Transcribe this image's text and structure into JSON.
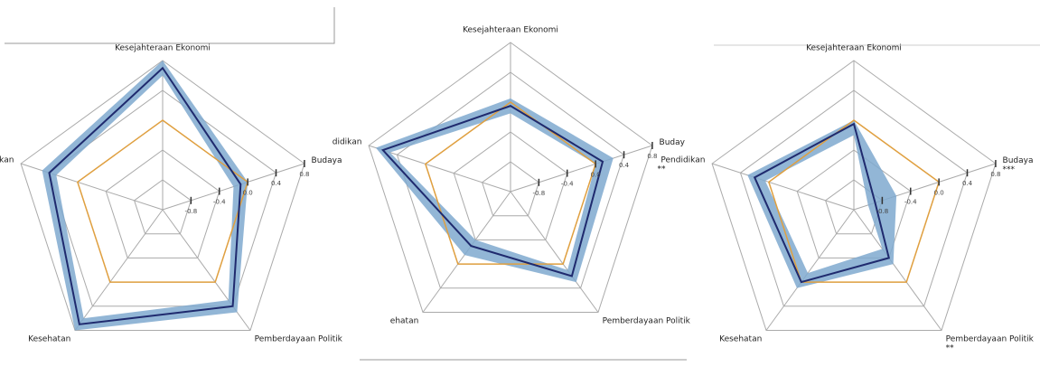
{
  "chart_data": [
    {
      "type": "radar",
      "axes": [
        "Kesejahteraan Ekonomi",
        "Budaya",
        "Pemberdayaan Politik",
        "Kesehatan",
        "Pendidikan"
      ],
      "rlim": [
        -1.2,
        0.8
      ],
      "rticks": [
        -0.8,
        -0.4,
        {
          "value": 0,
          "label": "0.0"
        },
        0.4,
        0.8
      ],
      "values": [
        0.7,
        -0.1,
        0.4,
        0.7,
        0.4
      ],
      "ci_low": [
        0.6,
        -0.2,
        0.3,
        0.6,
        0.3
      ],
      "ci_high": [
        0.8,
        0.0,
        0.5,
        0.8,
        0.5
      ],
      "reference": [
        0,
        0,
        0,
        0,
        0
      ],
      "color": "#1f2a6e",
      "band_color": "#7fa9cf",
      "reference_color": "#e0a040"
    },
    {
      "type": "radar",
      "axes": [
        "Kesejahteraan Ekonomi",
        "Buday",
        "Pemberdayaan Politik",
        "ehatan",
        "didikan"
      ],
      "rlim": [
        -1.2,
        0.8
      ],
      "rticks": [
        -0.8,
        -0.4,
        {
          "value": 0,
          "label": "0.0"
        },
        0.4,
        0.8
      ],
      "values": [
        -0.05,
        0.1,
        0.2,
        -0.3,
        0.6
      ],
      "ci_low": [
        -0.15,
        0.0,
        0.1,
        -0.4,
        0.5
      ],
      "ci_high": [
        0.05,
        0.25,
        0.3,
        -0.15,
        0.7
      ],
      "reference": [
        0,
        0,
        0,
        0,
        0
      ],
      "color": "#1f2a6e",
      "band_color": "#7fa9cf",
      "reference_color": "#e0a040"
    },
    {
      "type": "radar",
      "axes": [
        "Kesejahteraan Ekonomi",
        "Budaya",
        "Pemberdayaan Politik",
        "Kesehatan",
        "Pendidikan"
      ],
      "rlim": [
        -1.2,
        0.8
      ],
      "rticks": [
        -0.8,
        -0.4,
        {
          "value": 0,
          "label": "0.0"
        },
        0.4,
        0.8
      ],
      "values": [
        -0.05,
        -0.9,
        -0.4,
        0.0,
        0.2
      ],
      "ci_low": [
        -0.2,
        -1.0,
        -0.55,
        -0.15,
        0.05
      ],
      "ci_high": [
        0.0,
        -0.6,
        -0.3,
        0.1,
        0.3
      ],
      "reference": [
        0,
        0,
        0,
        0,
        0
      ],
      "annotations": [
        {
          "axis": 4,
          "text": "**"
        },
        {
          "axis": 1,
          "text": "***"
        },
        {
          "axis": 2,
          "text": "**"
        }
      ],
      "color": "#1f2a6e",
      "band_color": "#7fa9cf",
      "reference_color": "#e0a040"
    }
  ]
}
